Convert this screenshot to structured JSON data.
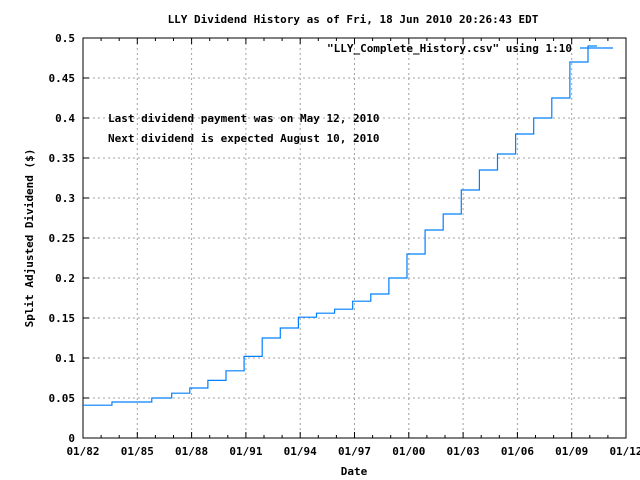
{
  "chart_data": {
    "type": "line",
    "style": "steps",
    "title": "LLY Dividend History as of Fri, 18 Jun 2010 20:26:43 EDT",
    "xlabel": "Date",
    "ylabel": "Split Adjusted Dividend ($)",
    "xlim": [
      1982,
      2012
    ],
    "ylim": [
      0,
      0.5
    ],
    "grid": true,
    "legend_position": "top-right",
    "x_ticks": [
      {
        "value": 1982,
        "label": "01/82"
      },
      {
        "value": 1985,
        "label": "01/85"
      },
      {
        "value": 1988,
        "label": "01/88"
      },
      {
        "value": 1991,
        "label": "01/91"
      },
      {
        "value": 1994,
        "label": "01/94"
      },
      {
        "value": 1997,
        "label": "01/97"
      },
      {
        "value": 2000,
        "label": "01/00"
      },
      {
        "value": 2003,
        "label": "01/03"
      },
      {
        "value": 2006,
        "label": "01/06"
      },
      {
        "value": 2009,
        "label": "01/09"
      },
      {
        "value": 2012,
        "label": "01/12"
      }
    ],
    "y_ticks": [
      {
        "value": 0,
        "label": "0"
      },
      {
        "value": 0.05,
        "label": "0.05"
      },
      {
        "value": 0.1,
        "label": "0.1"
      },
      {
        "value": 0.15,
        "label": "0.15"
      },
      {
        "value": 0.2,
        "label": "0.2"
      },
      {
        "value": 0.25,
        "label": "0.25"
      },
      {
        "value": 0.3,
        "label": "0.3"
      },
      {
        "value": 0.35,
        "label": "0.35"
      },
      {
        "value": 0.4,
        "label": "0.4"
      },
      {
        "value": 0.45,
        "label": "0.45"
      },
      {
        "value": 0.5,
        "label": "0.5"
      }
    ],
    "series": [
      {
        "name": "\"LLY_Complete_History.csv\" using 1:10",
        "color": "#0080ff",
        "x": [
          1982.0,
          1983.6,
          1985.8,
          1986.9,
          1987.9,
          1988.9,
          1989.9,
          1990.9,
          1991.9,
          1992.9,
          1993.9,
          1994.9,
          1995.9,
          1996.9,
          1997.9,
          1998.9,
          1999.9,
          2000.9,
          2001.9,
          2002.9,
          2003.9,
          2004.9,
          2005.9,
          2006.9,
          2007.9,
          2008.9,
          2009.9,
          2010.4
        ],
        "y": [
          0.041,
          0.045,
          0.05,
          0.056,
          0.0625,
          0.072,
          0.084,
          0.102,
          0.125,
          0.1375,
          0.151,
          0.156,
          0.161,
          0.171,
          0.18,
          0.2,
          0.23,
          0.26,
          0.28,
          0.31,
          0.335,
          0.355,
          0.38,
          0.4,
          0.425,
          0.47,
          0.49,
          0.49
        ]
      }
    ],
    "annotations": [
      "Last dividend payment was on May 12, 2010",
      "Next dividend is expected August 10, 2010"
    ]
  }
}
